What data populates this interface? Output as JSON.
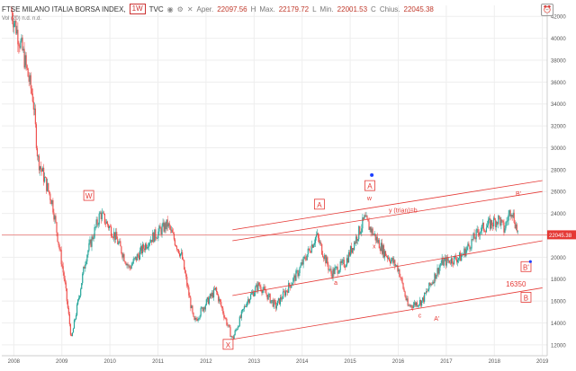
{
  "header": {
    "symbol": "FTSE MILANO ITALIA BORSA INDEX, ",
    "timeframe": "1W",
    "source": "TVC",
    "open_label": "Aper.",
    "open_value": "22097.56",
    "high_label": "H",
    "high_text": "Max.",
    "high_value": "22179.72",
    "low_label": "L",
    "low_text": "Min.",
    "low_value": "22001.53",
    "close_label": "C",
    "close_text": "Chius.",
    "close_value": "22045.38",
    "volume_text": "Vol (20)  n.d.  n.d."
  },
  "icons": {
    "eye": "eye-icon",
    "settings": "settings-icon",
    "close": "close-icon",
    "alert": "alarm-icon"
  },
  "colors": {
    "up": "#26a69a",
    "down": "#ef5350",
    "annotation": "#e53935",
    "grid": "#eeeeee",
    "price_tag": "#e53935"
  },
  "chart_data": {
    "type": "candlestick",
    "title": "FTSE MILANO ITALIA BORSA INDEX, 1W, TVC",
    "x_axis": [
      "2008",
      "2009",
      "2010",
      "2011",
      "2012",
      "2013",
      "2014",
      "2015",
      "2016",
      "2017",
      "2018",
      "2019"
    ],
    "y_ticks": [
      12000,
      14000,
      16000,
      18000,
      20000,
      22000,
      24000,
      26000,
      28000,
      30000,
      32000,
      34000,
      36000,
      38000,
      40000,
      42000
    ],
    "ylim": [
      11000,
      43000
    ],
    "last_price": "22045.38",
    "key_points": [
      {
        "x": 2007.95,
        "y": 42500
      },
      {
        "x": 2008.2,
        "y": 38500
      },
      {
        "x": 2008.4,
        "y": 34500
      },
      {
        "x": 2008.5,
        "y": 29000
      },
      {
        "x": 2008.8,
        "y": 25000
      },
      {
        "x": 2009.05,
        "y": 18000
      },
      {
        "x": 2009.2,
        "y": 12500
      },
      {
        "x": 2009.5,
        "y": 20000
      },
      {
        "x": 2009.8,
        "y": 24000
      },
      {
        "x": 2010.1,
        "y": 22000
      },
      {
        "x": 2010.4,
        "y": 19000
      },
      {
        "x": 2010.8,
        "y": 21500
      },
      {
        "x": 2011.2,
        "y": 23000
      },
      {
        "x": 2011.5,
        "y": 20000
      },
      {
        "x": 2011.75,
        "y": 14000
      },
      {
        "x": 2011.95,
        "y": 15500
      },
      {
        "x": 2012.2,
        "y": 17000
      },
      {
        "x": 2012.55,
        "y": 12500
      },
      {
        "x": 2012.85,
        "y": 16000
      },
      {
        "x": 2013.1,
        "y": 17500
      },
      {
        "x": 2013.45,
        "y": 15500
      },
      {
        "x": 2013.9,
        "y": 18500
      },
      {
        "x": 2014.3,
        "y": 22000
      },
      {
        "x": 2014.6,
        "y": 18500
      },
      {
        "x": 2014.9,
        "y": 19500
      },
      {
        "x": 2015.3,
        "y": 23500
      },
      {
        "x": 2015.7,
        "y": 20500
      },
      {
        "x": 2016.0,
        "y": 19000
      },
      {
        "x": 2016.2,
        "y": 15500
      },
      {
        "x": 2016.5,
        "y": 16000
      },
      {
        "x": 2016.9,
        "y": 19500
      },
      {
        "x": 2017.3,
        "y": 20000
      },
      {
        "x": 2017.7,
        "y": 22500
      },
      {
        "x": 2018.1,
        "y": 23500
      },
      {
        "x": 2018.2,
        "y": 22500
      },
      {
        "x": 2018.35,
        "y": 24500
      },
      {
        "x": 2018.5,
        "y": 22045
      }
    ],
    "annotations": {
      "W": "W",
      "A_upper": "A",
      "A_box": "A",
      "w": "w",
      "y_trian": "y (trian)=b",
      "x": "x",
      "a": "a",
      "B_prime": "B'",
      "B_prime_box": "B'",
      "level": "16350",
      "B_box": "B",
      "c": "c",
      "A_prime": "A'",
      "X_box": "X"
    },
    "channel_lines": [
      {
        "from": [
          2012.55,
          22500
        ],
        "to": [
          2019.0,
          27000
        ]
      },
      {
        "from": [
          2012.55,
          21500
        ],
        "to": [
          2019.0,
          26000
        ]
      },
      {
        "from": [
          2012.55,
          16500
        ],
        "to": [
          2019.0,
          21500
        ]
      },
      {
        "from": [
          2012.55,
          12500
        ],
        "to": [
          2019.0,
          17200
        ]
      }
    ],
    "horizontal_line": 22045
  }
}
